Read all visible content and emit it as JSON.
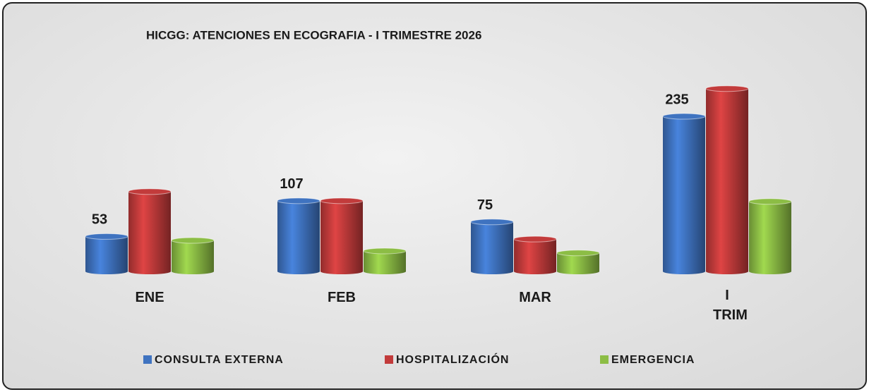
{
  "chart_data": {
    "type": "bar",
    "title": "HICGG: ATENCIONES EN ECOGRAFIA - I TRIMESTRE 2026",
    "categories": [
      "ENE",
      "FEB",
      "MAR",
      "I TRIM"
    ],
    "series": [
      {
        "name": "CONSULTA EXTERNA",
        "color": "#3f73c0",
        "values": [
          53,
          107,
          75,
          235
        ],
        "data_labels": true
      },
      {
        "name": "HOSPITALIZACIÓN",
        "color": "#c23b3b",
        "values": [
          121,
          107,
          49,
          277
        ]
      },
      {
        "name": "EMERGENCIA",
        "color": "#8cbd45",
        "values": [
          47,
          31,
          28,
          106
        ]
      }
    ],
    "legend": "bottom"
  }
}
